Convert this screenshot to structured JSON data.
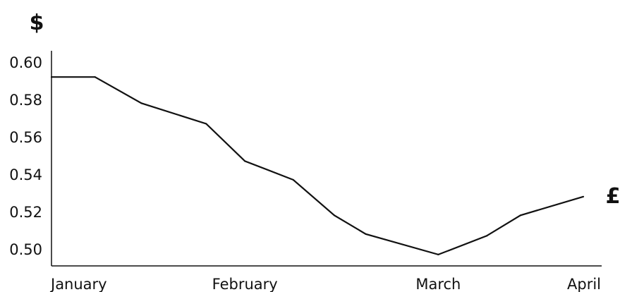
{
  "chart_data": {
    "type": "line",
    "ylabel": "$",
    "series_end_label": "£",
    "x": [
      0,
      0.09,
      0.186,
      0.32,
      0.4,
      0.5,
      0.585,
      0.65,
      0.8,
      0.9,
      0.97,
      1.1
    ],
    "values": [
      0.592,
      0.592,
      0.578,
      0.567,
      0.547,
      0.537,
      0.518,
      0.508,
      0.497,
      0.507,
      0.518,
      0.528
    ],
    "x_ticks": [
      {
        "label": "January",
        "value": 0
      },
      {
        "label": "February",
        "value": 0.4
      },
      {
        "label": "March",
        "value": 0.8
      },
      {
        "label": "April",
        "value": 1.1
      }
    ],
    "y_ticks": [
      "0.60",
      "0.58",
      "0.56",
      "0.54",
      "0.52",
      "0.50"
    ],
    "ylim": [
      0.49,
      0.6
    ],
    "grid": false,
    "line_color": "#111111"
  }
}
